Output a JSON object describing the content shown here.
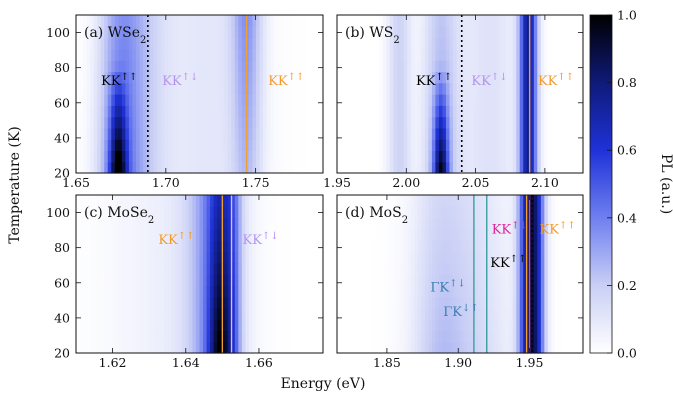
{
  "chart_data": {
    "type": "heatmap",
    "xlabel": "Energy (eV)",
    "ylabel": "Temperature (K)",
    "colorbar": {
      "label": "PL (a.u.)",
      "range": [
        0.0,
        1.0
      ],
      "ticks": [
        "0.0",
        "0.2",
        "0.4",
        "0.6",
        "0.8",
        "1.0"
      ],
      "colormap": [
        "#ffffff",
        "#c9cff5",
        "#6f7ff0",
        "#1f32d8",
        "#0f1a78",
        "#000000"
      ]
    },
    "panels": [
      {
        "id": "a",
        "label_pre": "(a) WSe",
        "label_sub": "2",
        "xlim": [
          1.65,
          1.7875
        ],
        "ylim": [
          20,
          110
        ],
        "xticks": [
          "1.65",
          "1.70",
          "1.75"
        ],
        "yticks": [
          "20",
          "40",
          "60",
          "80",
          "100"
        ],
        "peaks": [
          {
            "center": 1.673,
            "width": 0.008,
            "amp": 0.35,
            "temp_slope": -0.0038
          },
          {
            "center": 1.6735,
            "width": 0.0032,
            "amp": 0.7,
            "temp_slope": -0.016
          },
          {
            "center": 1.685,
            "width": 0.01,
            "amp": 0.2,
            "temp_slope": 0.0
          },
          {
            "center": 1.722,
            "width": 0.02,
            "amp": 0.1,
            "temp_slope": 0.0
          },
          {
            "center": 1.745,
            "width": 0.006,
            "amp": 0.2,
            "temp_slope": 0.006
          }
        ],
        "lines": [
          {
            "x": 1.69,
            "style": "dotted",
            "color": "#000000"
          },
          {
            "x": 1.745,
            "style": "solid",
            "color": "#f0a030"
          }
        ],
        "annotations": [
          {
            "base": "KK",
            "sup": "↑↑",
            "color": "#000000",
            "x": 1.664,
            "y": 70
          },
          {
            "base": "KK",
            "sup": "↑↓",
            "color": "#b493ee",
            "x": 1.698,
            "y": 70
          },
          {
            "base": "KK",
            "sup": "↑↑",
            "color": "#f29a2b",
            "x": 1.757,
            "y": 70
          }
        ]
      },
      {
        "id": "b",
        "label_pre": "(b) WS",
        "label_sub": "2",
        "xlim": [
          1.95,
          2.1275
        ],
        "ylim": [
          20,
          110
        ],
        "xticks": [
          "1.95",
          "2.00",
          "2.05",
          "2.10"
        ],
        "yticks": [],
        "peaks": [
          {
            "center": 2.025,
            "width": 0.009,
            "amp": 0.3,
            "temp_slope": -0.0033
          },
          {
            "center": 2.025,
            "width": 0.0035,
            "amp": 0.7,
            "temp_slope": -0.016
          },
          {
            "center": 1.995,
            "width": 0.006,
            "amp": 0.18,
            "temp_slope": 0.0
          },
          {
            "center": 2.06,
            "width": 0.015,
            "amp": 0.12,
            "temp_slope": 0.0
          },
          {
            "center": 2.088,
            "width": 0.0045,
            "amp": 0.75,
            "temp_slope": 0.0
          }
        ],
        "lines": [
          {
            "x": 2.04,
            "style": "dotted",
            "color": "#000000"
          },
          {
            "x": 2.089,
            "style": "solid",
            "color": "#f0a030"
          }
        ],
        "annotations": [
          {
            "base": "KK",
            "sup": "↑↑",
            "color": "#000000",
            "x": 2.007,
            "y": 70
          },
          {
            "base": "KK",
            "sup": "↑↓",
            "color": "#b493ee",
            "x": 2.047,
            "y": 70
          },
          {
            "base": "KK",
            "sup": "↑↑",
            "color": "#f29a2b",
            "x": 2.095,
            "y": 70
          }
        ]
      },
      {
        "id": "c",
        "label_pre": "(c) MoSe",
        "label_sub": "2",
        "xlim": [
          1.61,
          1.6775
        ],
        "ylim": [
          20,
          110
        ],
        "xticks": [
          "1.62",
          "1.64",
          "1.66"
        ],
        "yticks": [
          "20",
          "40",
          "60",
          "80",
          "100"
        ],
        "peaks": [
          {
            "center": 1.648,
            "width": 0.005,
            "amp": 0.35,
            "temp_slope": 0.0
          },
          {
            "center": 1.6495,
            "width": 0.0022,
            "amp": 0.65,
            "temp_slope": -0.006
          },
          {
            "center": 1.653,
            "width": 0.0015,
            "amp": 0.2,
            "temp_slope": 0.0
          },
          {
            "center": 1.637,
            "width": 0.012,
            "amp": 0.07,
            "temp_slope": 0.0
          }
        ],
        "lines": [
          {
            "x": 1.65,
            "style": "solid",
            "color": "#f0a030"
          },
          {
            "x": 1.6525,
            "style": "solid",
            "color": "#d9b7f5"
          }
        ],
        "annotations": [
          {
            "base": "KK",
            "sup": "↑↑",
            "color": "#f29a2b",
            "x": 1.6325,
            "y": 82
          },
          {
            "base": "KK",
            "sup": "↑↓",
            "color": "#b493ee",
            "x": 1.6555,
            "y": 82
          }
        ]
      },
      {
        "id": "d",
        "label_pre": "(d) MoS",
        "label_sub": "2",
        "xlim": [
          1.815,
          1.9875
        ],
        "ylim": [
          20,
          110
        ],
        "xticks": [
          "1.85",
          "1.90",
          "1.95"
        ],
        "yticks": [],
        "peaks": [
          {
            "center": 1.9545,
            "width": 0.0045,
            "amp": 0.6,
            "temp_slope": 0.0
          },
          {
            "center": 1.948,
            "width": 0.0045,
            "amp": 0.55,
            "temp_slope": 0.0
          },
          {
            "center": 1.905,
            "width": 0.022,
            "amp": 0.18,
            "temp_slope": -0.0035
          },
          {
            "center": 1.885,
            "width": 0.012,
            "amp": 0.12,
            "temp_slope": -0.004
          }
        ],
        "lines": [
          {
            "x": 1.911,
            "style": "solid",
            "color": "#3a9fa0"
          },
          {
            "x": 1.92,
            "style": "solid",
            "color": "#3a9fa0"
          },
          {
            "x": 1.948,
            "style": "solid",
            "color": "#f0a030"
          },
          {
            "x": 1.95,
            "style": "solid",
            "color": "#e040a0"
          },
          {
            "x": 1.952,
            "style": "dotted",
            "color": "#000000"
          }
        ],
        "annotations": [
          {
            "base": "KK",
            "sup": "↑↓",
            "color": "#e0209a",
            "x": 1.9235,
            "y": 88
          },
          {
            "base": "KK",
            "sup": "↑↑",
            "color": "#f29a2b",
            "x": 1.957,
            "y": 88
          },
          {
            "base": "KK",
            "sup": "↑↑",
            "color": "#000000",
            "x": 1.9225,
            "y": 69
          },
          {
            "base": "ΓK",
            "sup": "↑↓",
            "color": "#3a7fb0",
            "x": 1.8805,
            "y": 55
          },
          {
            "base": "ΓK",
            "sup": "↓↑",
            "color": "#3a7fb0",
            "x": 1.8895,
            "y": 41
          }
        ]
      }
    ]
  }
}
